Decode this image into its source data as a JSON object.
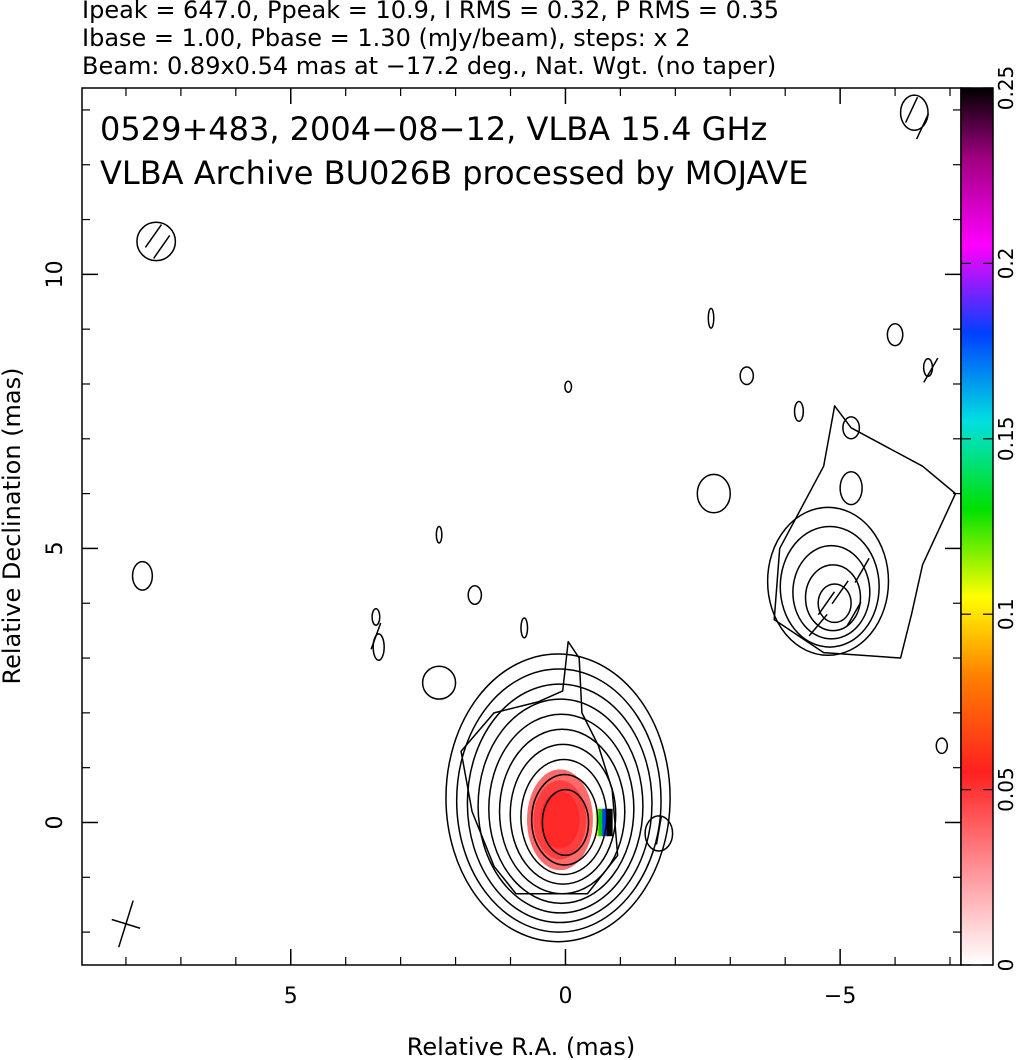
{
  "header": {
    "line1": "Ipeak = 647.0, Ppeak = 10.9, I RMS = 0.32, P RMS = 0.35",
    "line2": "Ibase = 1.00, Pbase = 1.30 (mJy/beam), steps: x 2",
    "line3": "Beam: 0.89x0.54 mas at −17.2 deg., Nat. Wgt. (no taper)"
  },
  "chart_data": {
    "type": "heatmap",
    "title": "0529+483, 2004−08−12, VLBA 15.4 GHz",
    "subtitle": "VLBA Archive BU026B processed by MOJAVE",
    "xlabel": "Relative R.A. (mas)",
    "ylabel": "Relative Declination (mas)",
    "xlim": [
      8.8,
      -7.2
    ],
    "ylim": [
      -2.6,
      13.4
    ],
    "x_ticks": [
      {
        "value": 5,
        "label": "5"
      },
      {
        "value": 0,
        "label": "0"
      },
      {
        "value": -5,
        "label": "−5"
      }
    ],
    "y_ticks": [
      {
        "value": 0,
        "label": "0"
      },
      {
        "value": 5,
        "label": "5"
      },
      {
        "value": 10,
        "label": "10"
      }
    ],
    "beam": {
      "major_mas": 0.89,
      "minor_mas": 0.54,
      "pa_deg": -17.2,
      "center": [
        8.0,
        -1.85
      ]
    },
    "colorbar": {
      "range": [
        0,
        0.25
      ],
      "ticks": [
        {
          "value": 0,
          "label": "0"
        },
        {
          "value": 0.05,
          "label": "0.05"
        },
        {
          "value": 0.1,
          "label": "0.1"
        },
        {
          "value": 0.15,
          "label": "0.15"
        },
        {
          "value": 0.2,
          "label": "0.2"
        },
        {
          "value": 0.25,
          "label": "0.25"
        }
      ],
      "stops": [
        "#ffffff",
        "#ff9aa0",
        "#ff2020",
        "#ff8000",
        "#ffff00",
        "#00e000",
        "#00e0e0",
        "#0040ff",
        "#ff00ff",
        "#000000"
      ]
    },
    "components": [
      {
        "x": 0.0,
        "y": 0.0,
        "levels": 10,
        "rx": 0.42,
        "ry": 0.6,
        "grow": 0.18,
        "shift": 0.05
      },
      {
        "x": -4.9,
        "y": 4.0,
        "levels": 5,
        "rx": 0.3,
        "ry": 0.35,
        "grow": 0.2,
        "shift": 0.1
      }
    ]
  }
}
